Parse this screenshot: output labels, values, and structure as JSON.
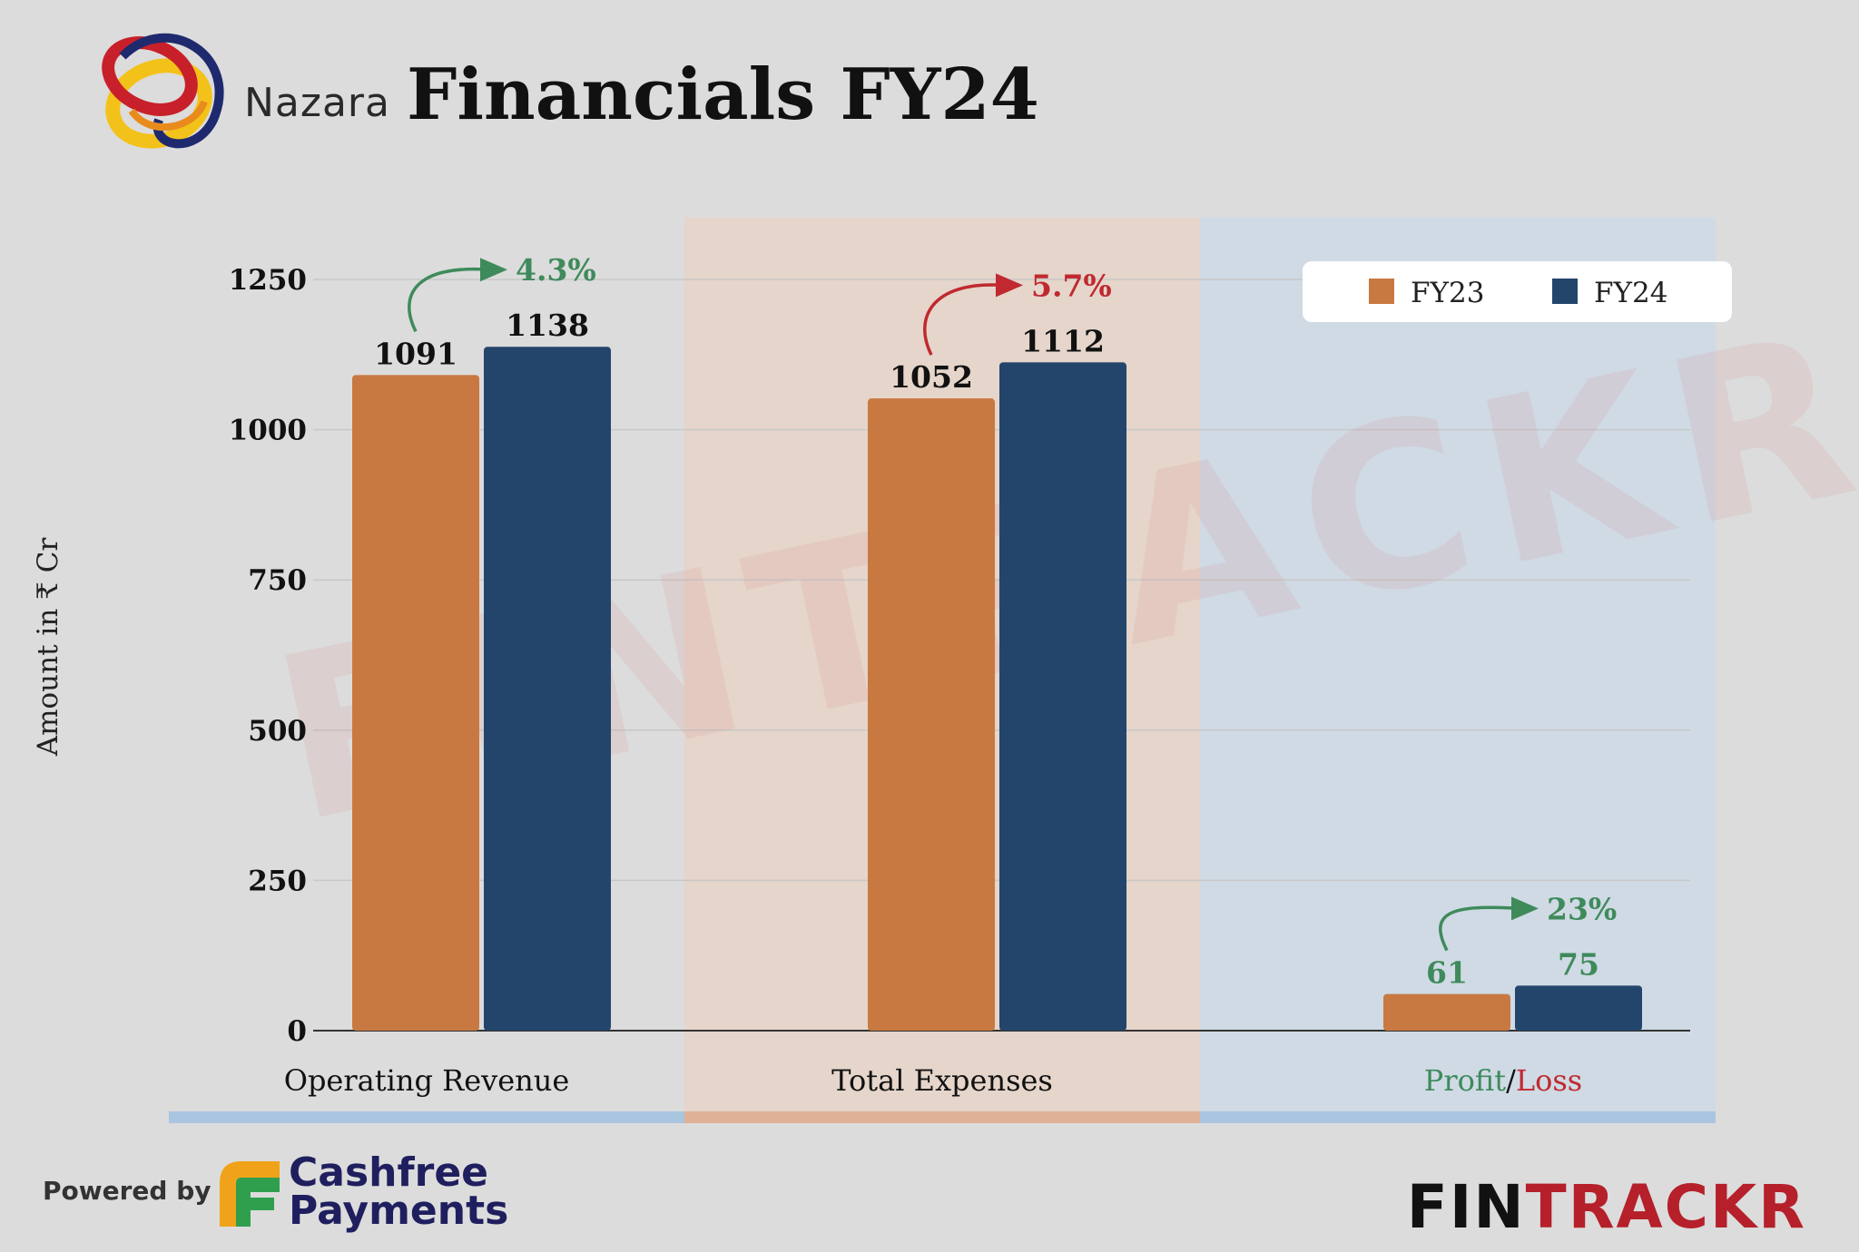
{
  "header": {
    "brand": "Nazara",
    "title": "Financials FY24"
  },
  "chart_data": {
    "type": "bar",
    "categories": [
      "Operating Revenue",
      "Total Expenses",
      "Profit/Loss"
    ],
    "series": [
      {
        "name": "FY23",
        "color": "#c87941",
        "values": [
          1091,
          1052,
          61
        ]
      },
      {
        "name": "FY24",
        "color": "#24456b",
        "values": [
          1138,
          1112,
          75
        ]
      }
    ],
    "ylabel": "Amount in ₹ Cr",
    "ylim": [
      0,
      1250
    ],
    "yticks": [
      0,
      250,
      500,
      750,
      1000,
      1250
    ],
    "changes": [
      {
        "label": "4.3%",
        "color": "#3f8a5b"
      },
      {
        "label": "5.7%",
        "color": "#c0292f"
      },
      {
        "label": "23%",
        "color": "#3f8a5b"
      }
    ],
    "profit_loss_label": {
      "profit": "Profit",
      "slash": "/",
      "loss": "Loss",
      "profit_color": "#3f8a5b",
      "loss_color": "#c0292f"
    },
    "grid": true,
    "legend_placement": "top-right",
    "watermark": "FINTRACKR"
  },
  "footer": {
    "powered_by": "Powered by",
    "cashfree_line1": "Cashfree",
    "cashfree_line2": "Payments",
    "fintrackr_fin": "FIN",
    "fintrackr_trackr": "TRACKR"
  }
}
